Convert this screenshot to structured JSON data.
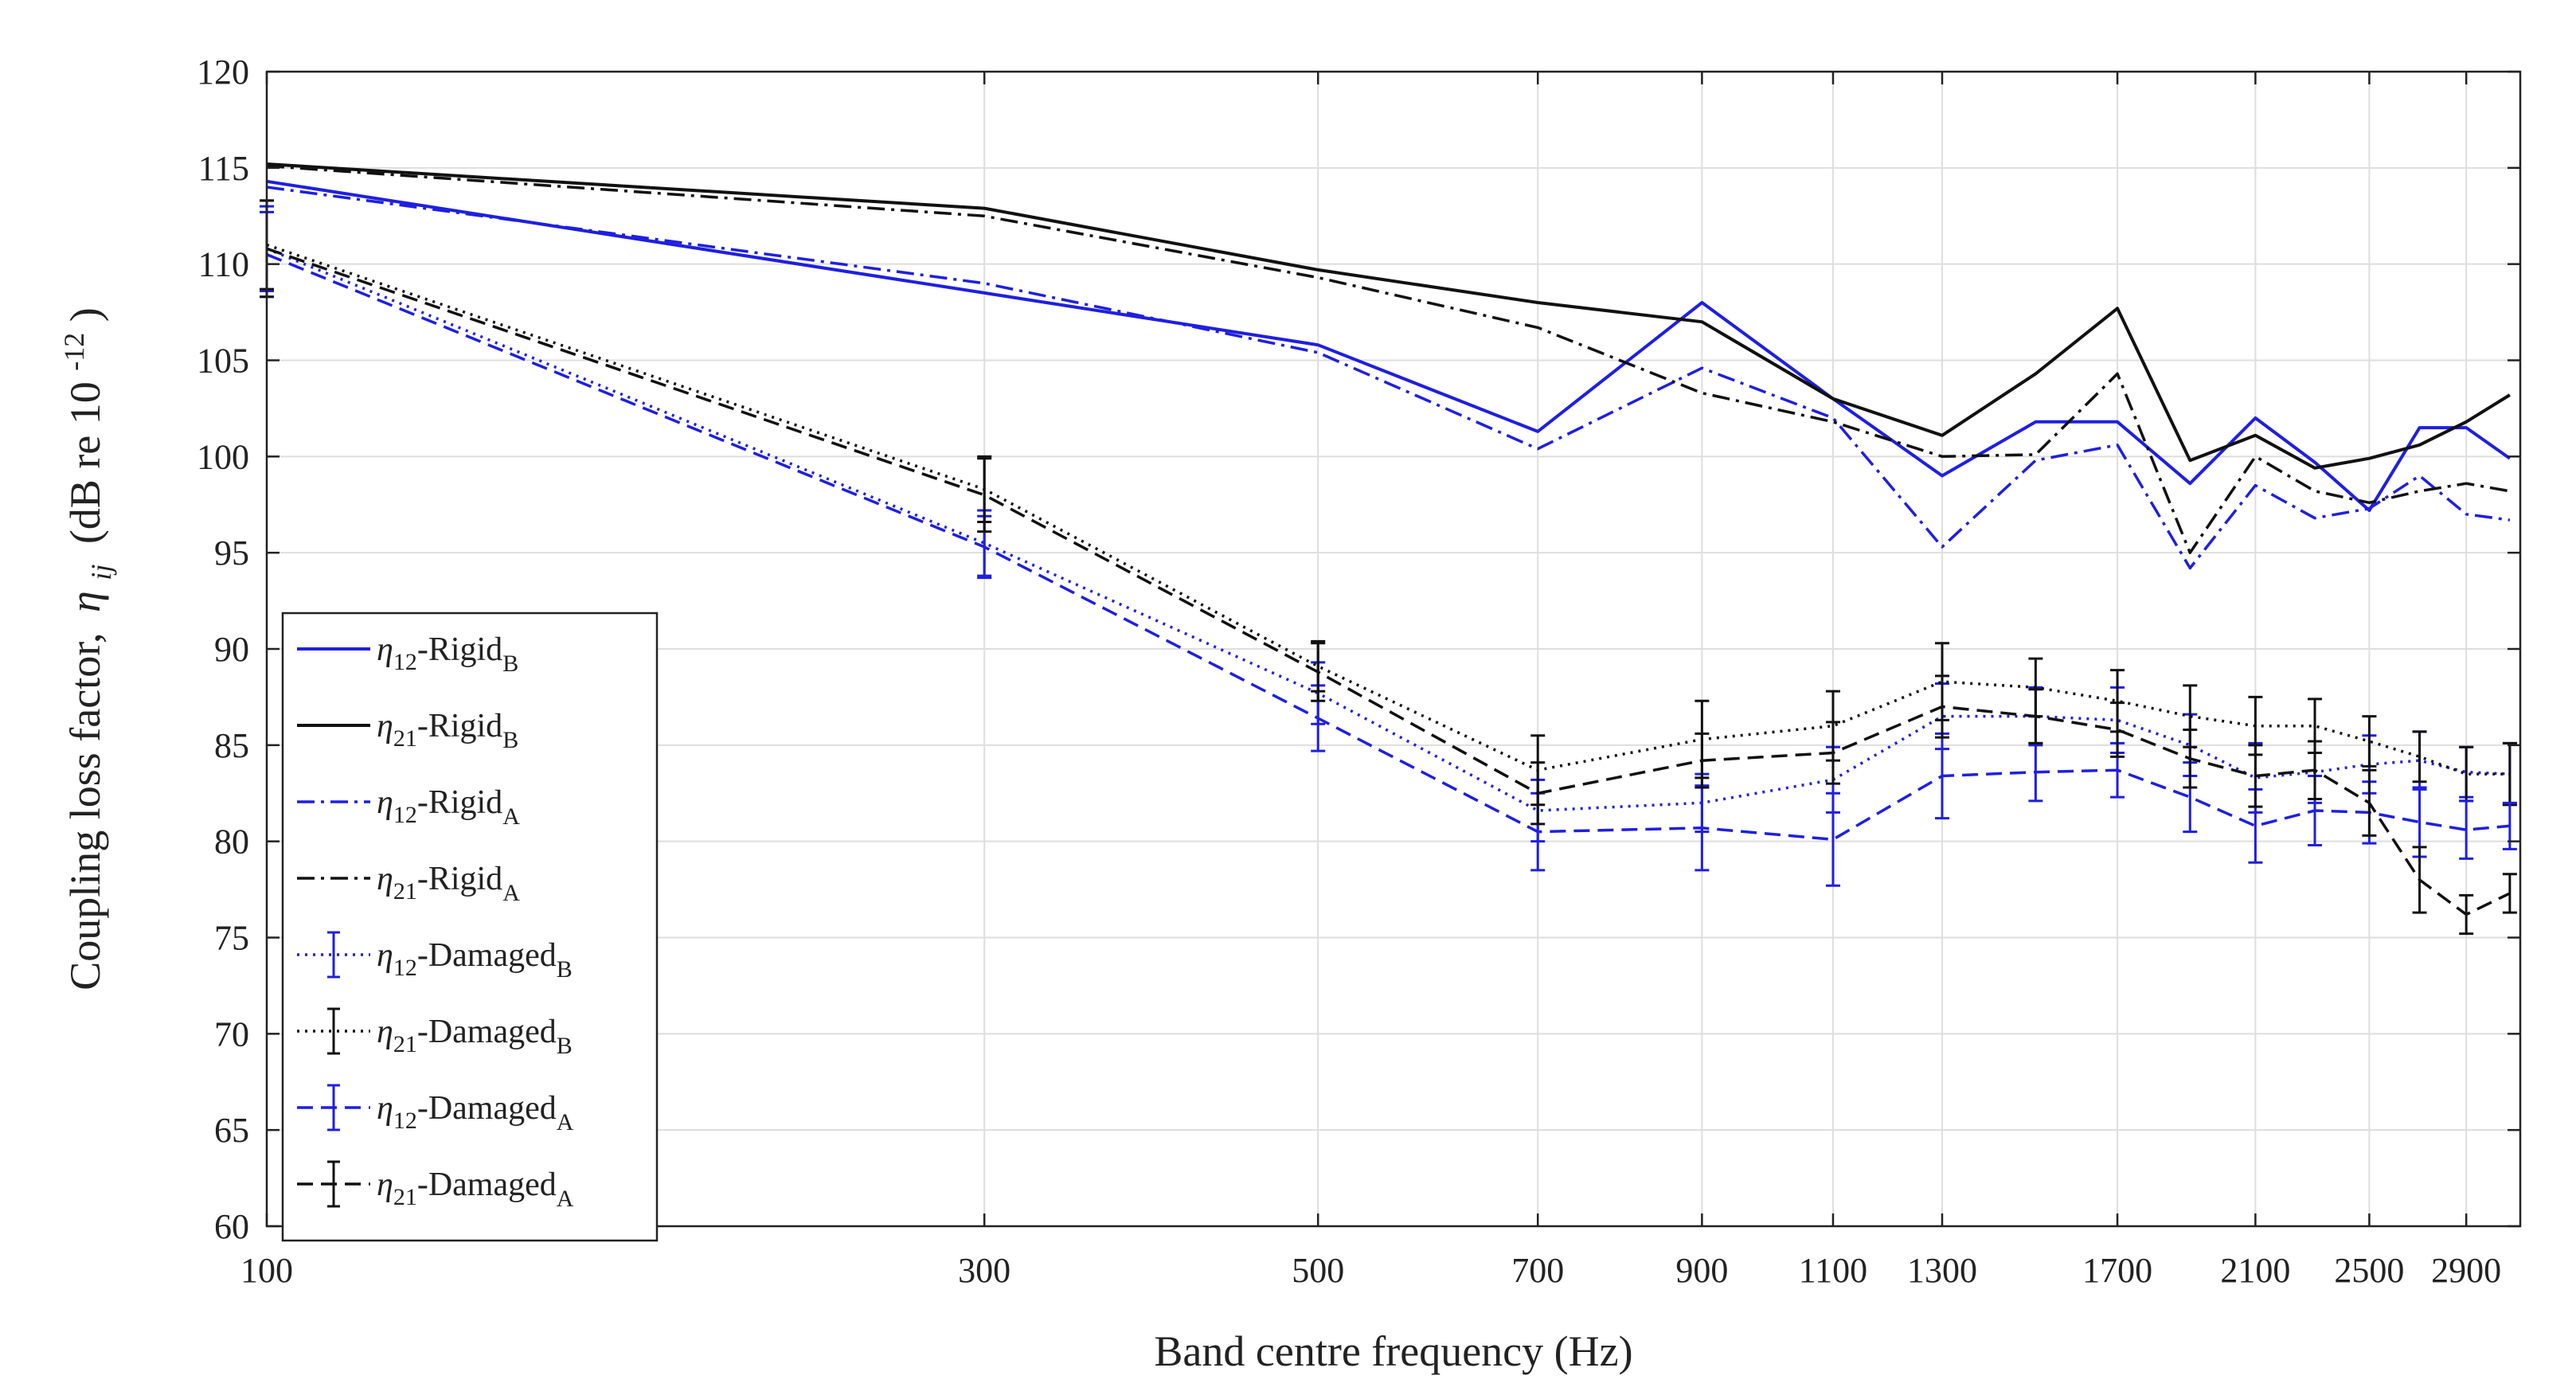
{
  "chart_data": {
    "type": "line",
    "title": "",
    "xlabel": "Band centre frequency (Hz)",
    "ylabel_main": "Coupling loss factor,",
    "ylabel_symbol": "η",
    "ylabel_symbol_sub": "ij",
    "ylabel_unit_prefix": "(dB re 10",
    "ylabel_unit_exp": "-12",
    "ylabel_unit_suffix": ")",
    "x_scale": "log",
    "xlim": [
      100,
      3150
    ],
    "ylim": [
      60,
      120
    ],
    "grid": true,
    "legend_position": "bottom-left",
    "x_ticks": [
      100,
      300,
      500,
      700,
      900,
      1100,
      1300,
      1700,
      2100,
      2500,
      2900
    ],
    "x_tick_labels": [
      "100",
      "300",
      "500",
      "700",
      "900",
      "1100",
      "1300",
      "1700",
      "2100",
      "2500",
      "2900"
    ],
    "y_ticks": [
      60,
      65,
      70,
      75,
      80,
      85,
      90,
      95,
      100,
      105,
      110,
      115,
      120
    ],
    "y_tick_labels": [
      "60",
      "65",
      "70",
      "75",
      "80",
      "85",
      "90",
      "95",
      "100",
      "105",
      "110",
      "115",
      "120"
    ],
    "x": [
      100,
      300,
      500,
      700,
      900,
      1100,
      1300,
      1500,
      1700,
      1900,
      2100,
      2300,
      2500,
      2700,
      2900,
      3100
    ],
    "series": [
      {
        "name": "η12-RigidB",
        "label_main": "η",
        "label_sub": "12",
        "label_text": "-Rigid",
        "label_sub2": "B",
        "color": "#1f1fe0",
        "dash": "solid",
        "values": [
          114.3,
          108.5,
          105.8,
          101.3,
          108.0,
          103.0,
          99.0,
          101.8,
          101.8,
          98.6,
          102.0,
          99.7,
          97.2,
          101.5,
          101.5,
          99.9
        ]
      },
      {
        "name": "η21-RigidB",
        "label_main": "η",
        "label_sub": "21",
        "label_text": "-Rigid",
        "label_sub2": "B",
        "color": "#111111",
        "dash": "solid",
        "values": [
          115.2,
          112.9,
          109.7,
          108.0,
          107.0,
          103.0,
          101.1,
          104.3,
          107.7,
          99.8,
          101.1,
          99.4,
          99.9,
          100.6,
          101.8,
          103.2
        ]
      },
      {
        "name": "η12-RigidA",
        "label_main": "η",
        "label_sub": "12",
        "label_text": "-Rigid",
        "label_sub2": "A",
        "color": "#1f1fe0",
        "dash": "dashdot",
        "values": [
          114.0,
          109.0,
          105.4,
          100.4,
          104.6,
          102.0,
          95.3,
          99.8,
          100.6,
          94.2,
          98.5,
          96.8,
          97.3,
          99.0,
          97.0,
          96.7
        ]
      },
      {
        "name": "η21-RigidA",
        "label_main": "η",
        "label_sub": "21",
        "label_text": "-Rigid",
        "label_sub2": "A",
        "color": "#111111",
        "dash": "dashdot",
        "values": [
          115.1,
          112.5,
          109.3,
          106.7,
          103.3,
          101.8,
          100.0,
          100.1,
          104.3,
          95.0,
          100.0,
          98.2,
          97.6,
          98.2,
          98.6,
          98.2
        ]
      },
      {
        "name": "η12-DamagedB",
        "label_main": "η",
        "label_sub": "12",
        "label_text": "-Damaged",
        "label_sub2": "B",
        "color": "#1f1fe0",
        "dash": "dotted",
        "values": [
          110.8,
          95.5,
          87.7,
          81.6,
          82.0,
          83.2,
          86.5,
          86.5,
          86.3,
          85.0,
          83.3,
          83.6,
          84.0,
          84.2,
          83.6,
          83.5
        ],
        "err": [
          2.2,
          1.7,
          1.6,
          1.6,
          1.5,
          1.7,
          1.7,
          1.5,
          1.7,
          1.6,
          1.8,
          1.6,
          1.5,
          1.5,
          1.3,
          1.6
        ]
      },
      {
        "name": "η21-DamagedB",
        "label_main": "η",
        "label_sub": "21",
        "label_text": "-Damaged",
        "label_sub2": "B",
        "color": "#111111",
        "dash": "dotted",
        "values": [
          111.0,
          98.3,
          89.1,
          83.7,
          85.3,
          86.0,
          88.3,
          88.0,
          87.3,
          86.5,
          86.0,
          86.0,
          85.2,
          84.4,
          83.5,
          83.5
        ],
        "err": [
          2.3,
          1.7,
          1.3,
          1.8,
          2.0,
          1.8,
          2.0,
          1.5,
          1.6,
          1.6,
          1.5,
          1.4,
          1.3,
          1.3,
          1.4,
          1.6
        ]
      },
      {
        "name": "η12-DamagedA",
        "label_main": "η",
        "label_sub": "12",
        "label_text": "-Damaged",
        "label_sub2": "A",
        "color": "#1f1fe0",
        "dash": "dashed",
        "values": [
          110.5,
          95.3,
          86.4,
          80.5,
          80.7,
          80.1,
          83.4,
          83.6,
          83.7,
          82.3,
          80.8,
          81.6,
          81.5,
          81.0,
          80.6,
          80.8
        ],
        "err": [
          2.2,
          1.6,
          1.7,
          2.0,
          2.2,
          2.4,
          2.2,
          1.5,
          1.4,
          1.8,
          1.9,
          1.8,
          1.6,
          1.8,
          1.5,
          1.2
        ]
      },
      {
        "name": "η21-DamagedA",
        "label_main": "η",
        "label_sub": "21",
        "label_text": "-Damaged",
        "label_sub2": "A",
        "color": "#111111",
        "dash": "dashed",
        "values": [
          110.8,
          98.0,
          88.8,
          82.5,
          84.2,
          84.6,
          87.0,
          86.5,
          85.8,
          84.3,
          83.4,
          83.7,
          82.0,
          78.0,
          76.2,
          77.3
        ],
        "err": [
          2.5,
          1.9,
          1.5,
          1.6,
          1.4,
          1.6,
          1.6,
          1.4,
          1.4,
          1.5,
          1.6,
          1.5,
          1.7,
          1.7,
          1.0,
          1.0
        ]
      }
    ]
  }
}
